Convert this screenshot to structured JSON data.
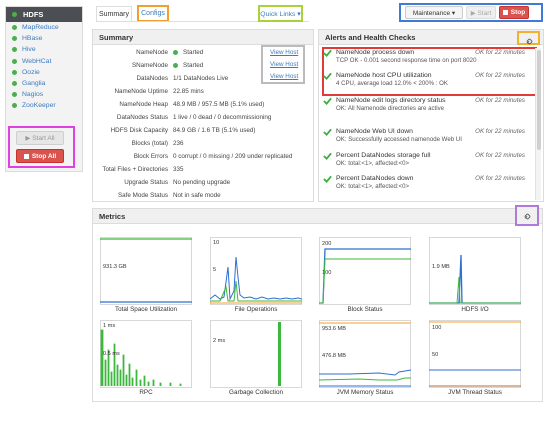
{
  "sidebar": {
    "active": "HDFS",
    "items": [
      "MapReduce",
      "HBase",
      "Hive",
      "WebHCat",
      "Oozie",
      "Ganglia",
      "Nagios",
      "ZooKeeper"
    ],
    "start_all": "▶ Start All",
    "stop_all": "Stop All"
  },
  "tabs": {
    "summary": "Summary",
    "configs": "Configs"
  },
  "quick_links": "Quick Links ▾",
  "actions": {
    "maintenance": "Maintenance ▾",
    "start": "▶ Start",
    "stop": "Stop"
  },
  "summary": {
    "title": "Summary",
    "rows": [
      {
        "label": "NameNode",
        "value": "Started"
      },
      {
        "label": "SNameNode",
        "value": "Started"
      },
      {
        "label": "DataNodes",
        "value": "1/1 DataNodes Live"
      },
      {
        "label": "NameNode Uptime",
        "value": "22.85 mins"
      },
      {
        "label": "NameNode Heap",
        "value": "48.9 MB / 957.5 MB (5.1% used)"
      },
      {
        "label": "DataNodes Status",
        "value": "1 live / 0 dead / 0 decommissioning"
      },
      {
        "label": "HDFS Disk Capacity",
        "value": "84.9 GB / 1.6 TB (5.1% used)"
      },
      {
        "label": "Blocks (total)",
        "value": "236"
      },
      {
        "label": "Block Errors",
        "value": "0 corrupt / 0 missing / 209 under replicated"
      },
      {
        "label": "Total Files + Directories",
        "value": "335"
      },
      {
        "label": "Upgrade Status",
        "value": "No pending upgrade"
      },
      {
        "label": "Safe Mode Status",
        "value": "Not in safe mode"
      }
    ],
    "view_host": "View Host"
  },
  "alerts": {
    "title": "Alerts and Health Checks",
    "items": [
      {
        "title": "NameNode process down",
        "status": "OK for 22 minutes",
        "detail": "TCP OK - 0.001 second response time on port 8020"
      },
      {
        "title": "NameNode host CPU utilization",
        "status": "OK for 22 minutes",
        "detail": "4 CPU, average load 12.0% < 200% : OK"
      },
      {
        "title": "NameNode edit logs directory status",
        "status": "OK for 22 minutes",
        "detail": "OK: All Namenode directories are active"
      },
      {
        "title": "NameNode Web UI down",
        "status": "OK for 22 minutes",
        "detail": "OK: Successfully accessed namenode Web UI"
      },
      {
        "title": "Percent DataNodes storage full",
        "status": "OK for 22 minutes",
        "detail": "OK: total:<1>, affected:<0>"
      },
      {
        "title": "Percent DataNodes down",
        "status": "OK for 22 minutes",
        "detail": "OK: total:<1>, affected:<0>"
      }
    ]
  },
  "metrics": {
    "title": "Metrics",
    "charts": [
      {
        "caption": "Total Space Utilization",
        "ticks": [
          "931.3 GB"
        ]
      },
      {
        "caption": "File Operations",
        "ticks": [
          "10",
          "5"
        ]
      },
      {
        "caption": "Block Status",
        "ticks": [
          "200",
          "100"
        ]
      },
      {
        "caption": "HDFS I/O",
        "ticks": [
          "1.9 MB"
        ]
      },
      {
        "caption": "RPC",
        "ticks": [
          "1 ms",
          "0.5 ms"
        ]
      },
      {
        "caption": "Garbage Collection",
        "ticks": [
          "2 ms"
        ]
      },
      {
        "caption": "JVM Memory Status",
        "ticks": [
          "953.6 MB",
          "476.8 MB"
        ]
      },
      {
        "caption": "JVM Thread Status",
        "ticks": [
          "100",
          "50"
        ]
      }
    ]
  },
  "colors": {
    "green": "#4cae4c",
    "danger": "#d9534f",
    "link": "#3a7bbf",
    "series_blue": "#2e6fd0",
    "series_green": "#3cb83c",
    "series_orange": "#f0a030"
  }
}
